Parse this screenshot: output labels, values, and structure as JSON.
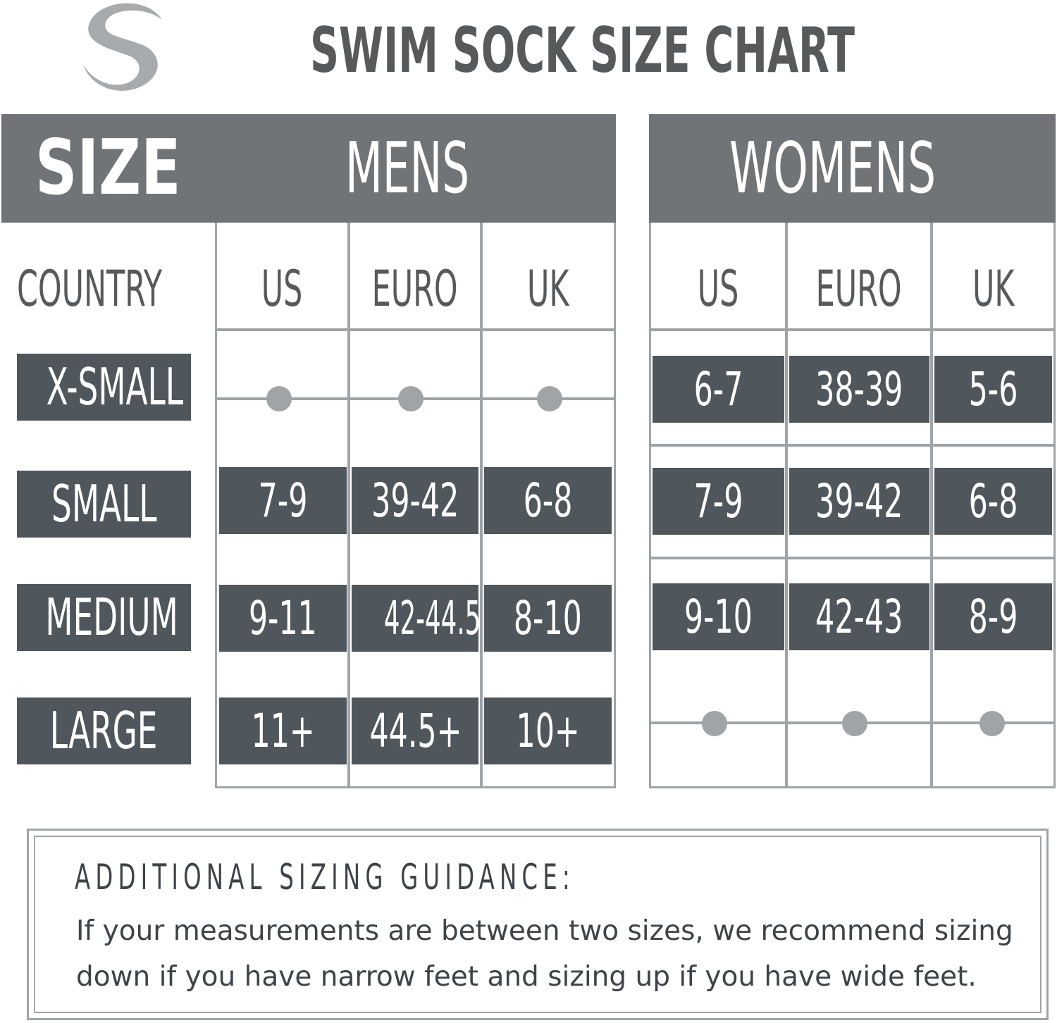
{
  "header": {
    "title": "SWIM SOCK SIZE CHART",
    "size_label": "SIZE",
    "mens_label": "MENS",
    "womens_label": "WOMENS"
  },
  "columns": {
    "country_label": "COUNTRY",
    "mens": [
      "US",
      "EURO",
      "UK"
    ],
    "womens": [
      "US",
      "EURO",
      "UK"
    ]
  },
  "sizes": [
    "X-SMALL",
    "SMALL",
    "MEDIUM",
    "LARGE"
  ],
  "mens_values": {
    "small": [
      "7-9",
      "39-42",
      "6-8"
    ],
    "medium": [
      "9-11",
      "42-44.5",
      "8-10"
    ],
    "large": [
      "11+",
      "44.5+",
      "10+"
    ]
  },
  "womens_values": {
    "xsmall": [
      "6-7",
      "38-39",
      "5-6"
    ],
    "small": [
      "7-9",
      "39-42",
      "6-8"
    ],
    "medium": [
      "9-10",
      "42-43",
      "8-9"
    ]
  },
  "guidance": {
    "title": "ADDITIONAL SIZING GUIDANCE:",
    "line1": "If your measurements are between two sizes, we recommend sizing",
    "line2": "down if you have narrow feet and sizing up if you have wide feet."
  },
  "colors": {
    "header_bg": "#707477",
    "cell_bg": "#4f565c",
    "grid_line": "#a0a4a7",
    "text_gray": "#58595b"
  },
  "icons": {
    "logo": "swim-s-logo-icon",
    "not_available": "dot-icon"
  }
}
